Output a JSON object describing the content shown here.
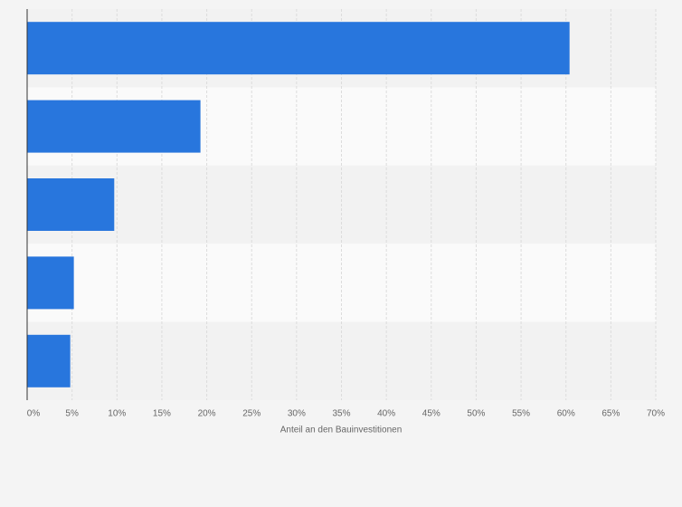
{
  "chart_data": {
    "type": "barh",
    "x_label": "Anteil an den Bauinvestitionen",
    "categories": [
      null,
      null,
      null,
      null,
      null
    ],
    "values": [
      60.4,
      19.3,
      9.7,
      5.2,
      4.8
    ],
    "color": "#2876dd",
    "xlim": [
      0,
      70
    ],
    "xticks": [
      {
        "value": 0,
        "label": "0%"
      },
      {
        "value": 5,
        "label": "5%"
      },
      {
        "value": 10,
        "label": "10%"
      },
      {
        "value": 15,
        "label": "15%"
      },
      {
        "value": 20,
        "label": "20%"
      },
      {
        "value": 25,
        "label": "25%"
      },
      {
        "value": 30,
        "label": "30%"
      },
      {
        "value": 35,
        "label": "35%"
      },
      {
        "value": 40,
        "label": "40%"
      },
      {
        "value": 45,
        "label": "45%"
      },
      {
        "value": 50,
        "label": "50%"
      },
      {
        "value": 55,
        "label": "55%"
      },
      {
        "value": 60,
        "label": "60%"
      },
      {
        "value": 65,
        "label": "65%"
      },
      {
        "value": 70,
        "label": "70%"
      }
    ],
    "grid": true
  }
}
